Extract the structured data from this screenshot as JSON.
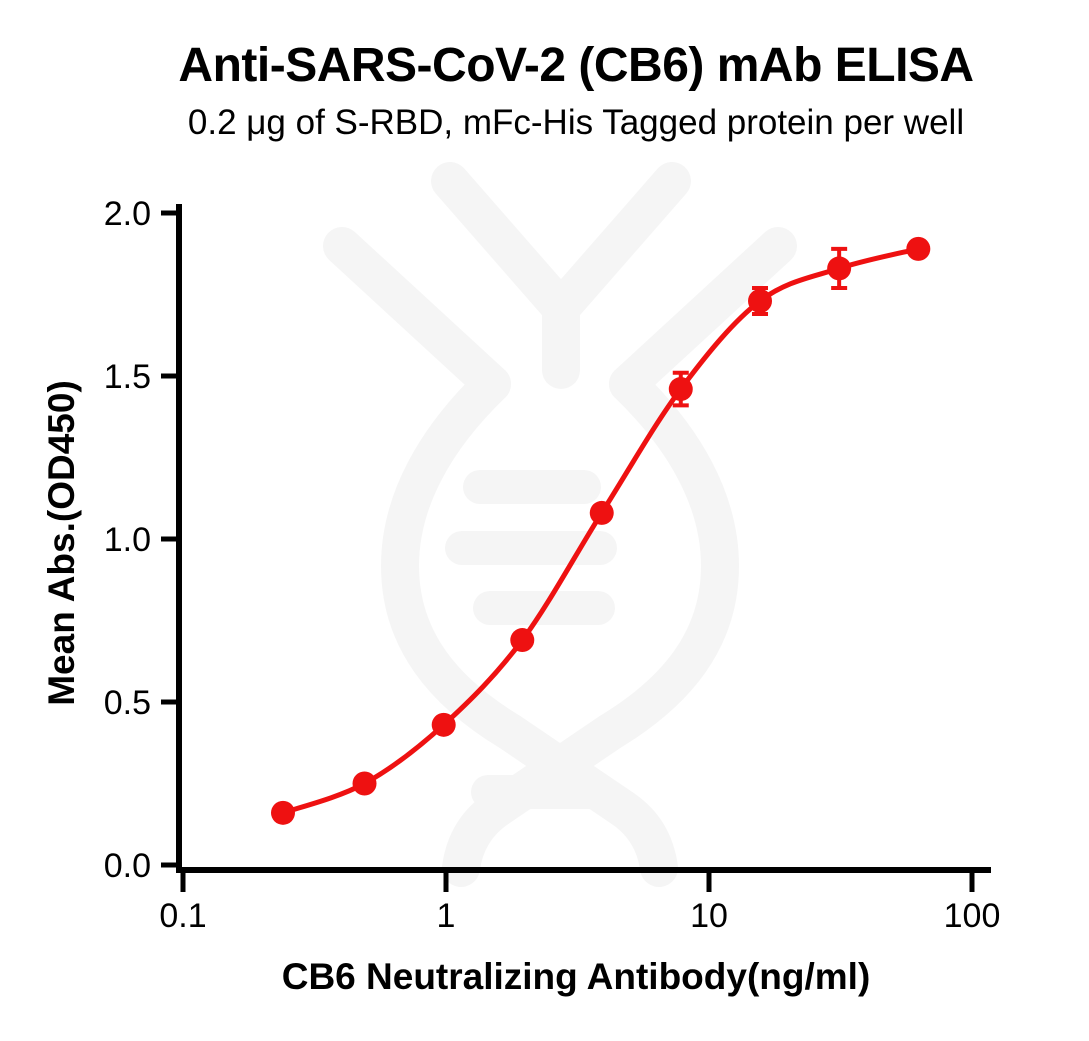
{
  "chart_data": {
    "type": "scatter",
    "title": "Anti-SARS-CoV-2 (CB6) mAb ELISA",
    "subtitle": "0.2 μg of S-RBD, mFc-His Tagged protein per well",
    "xlabel": "CB6 Neutralizing Antibody(ng/ml)",
    "ylabel": "Mean Abs.(OD450)",
    "x_scale": "log10",
    "xlim": [
      0.1,
      100
    ],
    "ylim": [
      0.0,
      2.0
    ],
    "x_ticks": [
      0.1,
      1,
      10,
      100
    ],
    "x_tick_labels": [
      "0.1",
      "1",
      "10",
      "100"
    ],
    "y_ticks": [
      0.0,
      0.5,
      1.0,
      1.5,
      2.0
    ],
    "y_tick_labels": [
      "0.0",
      "0.5",
      "1.0",
      "1.5",
      "2.0"
    ],
    "grid": false,
    "legend": "none",
    "x": [
      0.24,
      0.49,
      0.98,
      1.95,
      3.91,
      7.81,
      15.63,
      31.25,
      62.5
    ],
    "series": [
      {
        "name": "Mean Abs.(OD450)",
        "values": [
          0.16,
          0.25,
          0.43,
          0.69,
          1.08,
          1.46,
          1.73,
          1.83,
          1.89
        ],
        "errors": [
          0,
          0,
          0,
          0,
          0,
          0.05,
          0.04,
          0.06,
          0
        ]
      }
    ],
    "curve": "4PL sigmoid fit through points",
    "marker": "filled-circle",
    "colors": {
      "series": "#ee1111",
      "axis": "#000000",
      "text": "#000000",
      "watermark": "#f5f5f5",
      "background": "#ffffff"
    }
  }
}
